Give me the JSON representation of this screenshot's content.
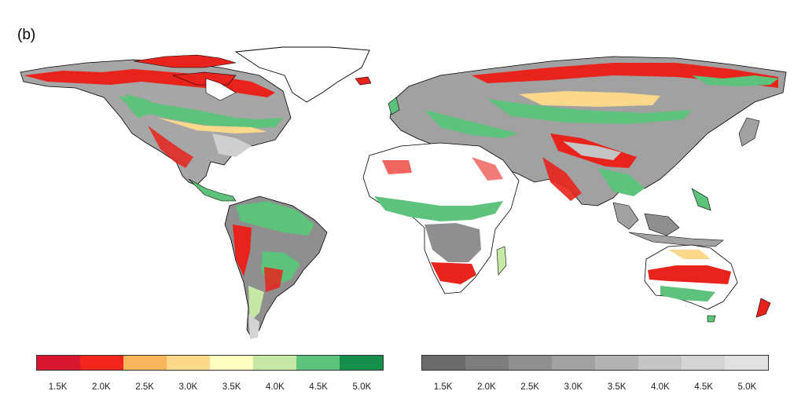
{
  "panel_label": "(b)",
  "legend_color": {
    "colors": [
      "#d7172f",
      "#f2261d",
      "#f9b65a",
      "#fcd98a",
      "#ffffbf",
      "#c7e8a4",
      "#5cc27c",
      "#14904a"
    ],
    "ticks": [
      "1.5K",
      "2.0K",
      "2.5K",
      "3.0K",
      "3.5K",
      "4.0K",
      "4.5K",
      "5.0K"
    ]
  },
  "legend_gray": {
    "colors": [
      "#6b6b6b",
      "#7d7d7d",
      "#8f8f8f",
      "#a1a1a1",
      "#b3b3b3",
      "#c5c5c5",
      "#d4d4d4",
      "#e1e1e1"
    ],
    "ticks": [
      "1.5K",
      "2.0K",
      "2.5K",
      "3.0K",
      "3.5K",
      "4.0K",
      "4.5K",
      "5.0K"
    ]
  }
}
